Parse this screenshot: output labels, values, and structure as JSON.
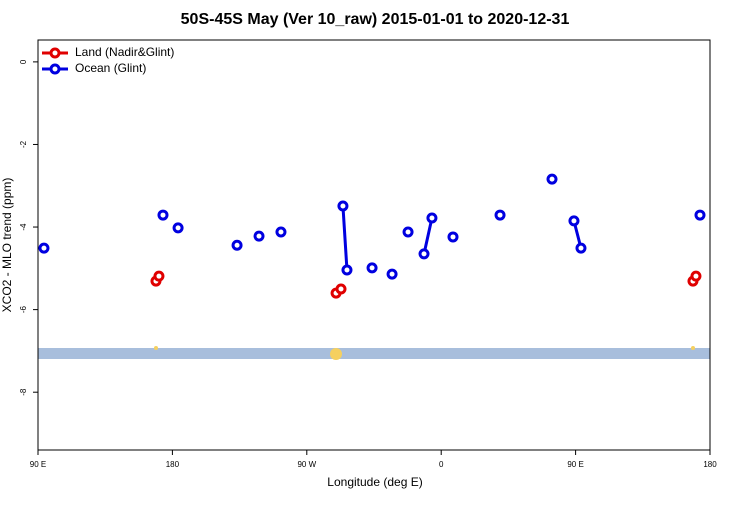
{
  "chart_data": {
    "type": "line",
    "title": "50S-45S May (Ver 10_raw)   2015-01-01 to 2020-12-31",
    "xlabel": "Longitude (deg E)",
    "ylabel": "XCO2 - MLO trend (ppm)",
    "xlim": [
      90,
      540
    ],
    "ylim": [
      -9.4,
      0.53
    ],
    "xticks": [
      {
        "value": 90,
        "label": "90 E"
      },
      180,
      {
        "value": 270,
        "label": "90 W"
      },
      {
        "value": 360,
        "label": "0"
      },
      {
        "value": 450,
        "label": "90 E"
      },
      {
        "value": 540,
        "label": "180"
      }
    ],
    "yticks": [
      0,
      -2,
      -4,
      -6,
      -8
    ],
    "legend": "top-left",
    "series": [
      {
        "name": "Land (Nadir&Glint)",
        "color": "#e00000",
        "x": [
          169.0,
          171.0,
          null,
          289.6,
          292.9,
          null,
          528.6,
          530.6
        ],
        "values": [
          -5.31,
          -5.19,
          null,
          -5.6,
          -5.5,
          null,
          -5.31,
          -5.19
        ]
      },
      {
        "name": "Ocean (Glint)",
        "color": "#0000e0",
        "x": [
          94.0,
          null,
          173.7,
          null,
          183.8,
          null,
          223.3,
          null,
          238.0,
          null,
          252.7,
          null,
          294.2,
          296.9,
          null,
          313.7,
          null,
          327.1,
          null,
          337.8,
          null,
          348.5,
          353.8,
          null,
          367.9,
          null,
          399.4,
          null,
          434.2,
          null,
          448.9,
          453.6,
          null,
          533.3
        ],
        "values": [
          -4.51,
          null,
          -3.71,
          null,
          -4.02,
          null,
          -4.44,
          null,
          -4.22,
          null,
          -4.12,
          null,
          -3.49,
          -5.04,
          null,
          -4.99,
          null,
          -5.14,
          null,
          -4.12,
          null,
          -4.65,
          -3.78,
          null,
          -4.24,
          null,
          -3.71,
          null,
          -2.84,
          null,
          -3.85,
          -4.51,
          null,
          -3.71
        ]
      }
    ]
  }
}
